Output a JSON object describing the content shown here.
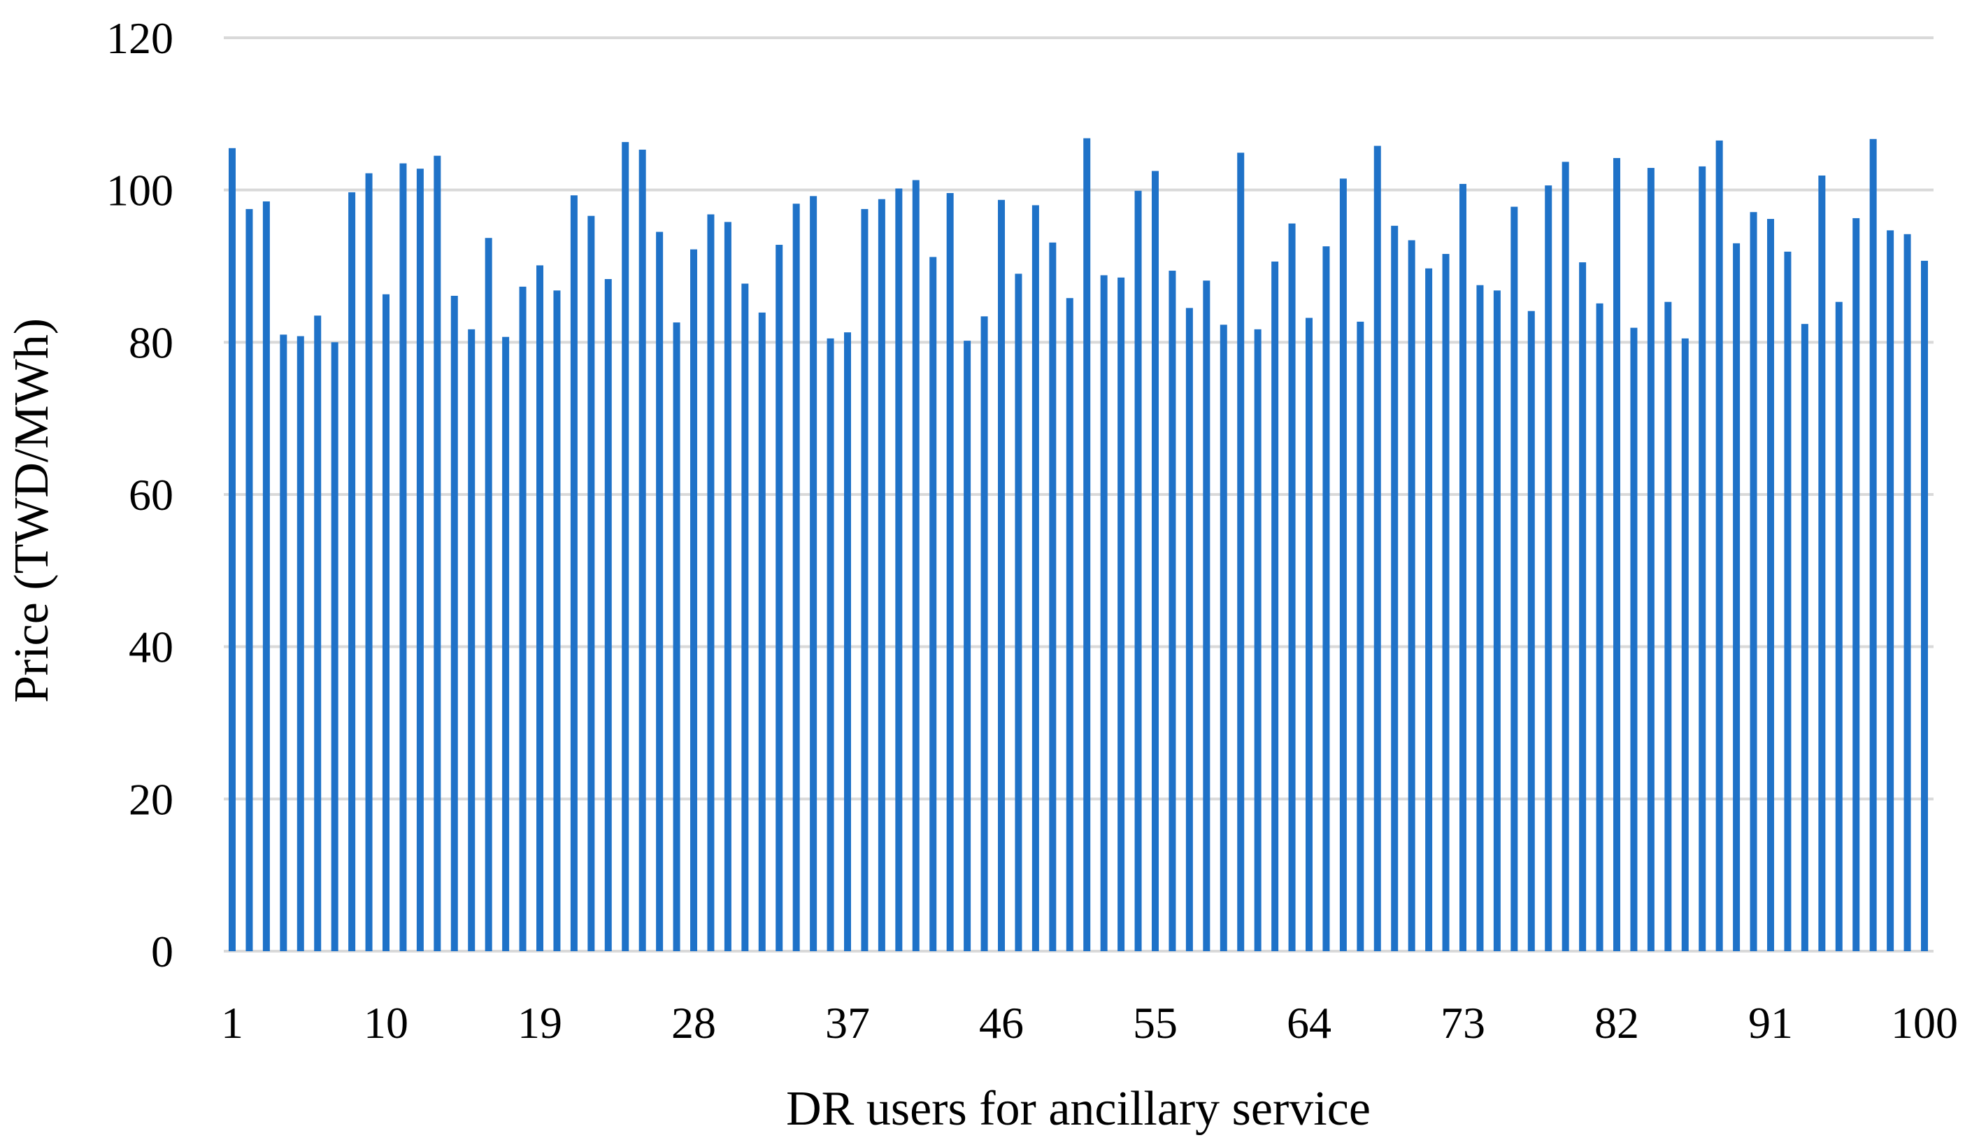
{
  "chart_data": {
    "type": "bar",
    "title": "",
    "xlabel": "DR users for ancillary service",
    "ylabel": "Price (TWD/MWh)",
    "ylim": [
      0,
      120
    ],
    "yticks": [
      0,
      20,
      40,
      60,
      80,
      100,
      120
    ],
    "xtick_labels": [
      "1",
      "10",
      "19",
      "28",
      "37",
      "46",
      "55",
      "64",
      "73",
      "82",
      "91",
      "100"
    ],
    "grid": "horizontal",
    "legend": "none",
    "bar_color": "#1f72c8",
    "grid_color": "#d9d9d9",
    "categories": [
      1,
      2,
      3,
      4,
      5,
      6,
      7,
      8,
      9,
      10,
      11,
      12,
      13,
      14,
      15,
      16,
      17,
      18,
      19,
      20,
      21,
      22,
      23,
      24,
      25,
      26,
      27,
      28,
      29,
      30,
      31,
      32,
      33,
      34,
      35,
      36,
      37,
      38,
      39,
      40,
      41,
      42,
      43,
      44,
      45,
      46,
      47,
      48,
      49,
      50,
      51,
      52,
      53,
      54,
      55,
      56,
      57,
      58,
      59,
      60,
      61,
      62,
      63,
      64,
      65,
      66,
      67,
      68,
      69,
      70,
      71,
      72,
      73,
      74,
      75,
      76,
      77,
      78,
      79,
      80,
      81,
      82,
      83,
      84,
      85,
      86,
      87,
      88,
      89,
      90,
      91,
      92,
      93,
      94,
      95,
      96,
      97,
      98,
      99,
      100
    ],
    "values": [
      105.5,
      97.5,
      98.5,
      81,
      80.8,
      83.5,
      80,
      99.7,
      102.2,
      86.3,
      103.5,
      102.8,
      104.5,
      86.1,
      81.7,
      93.7,
      80.7,
      87.3,
      90.1,
      86.8,
      99.3,
      96.6,
      88.3,
      106.3,
      105.3,
      94.5,
      82.6,
      92.2,
      96.8,
      95.8,
      87.7,
      83.9,
      92.8,
      98.2,
      99.2,
      80.5,
      81.3,
      97.5,
      98.8,
      100.2,
      101.3,
      91.2,
      99.6,
      80.2,
      83.4,
      98.7,
      89,
      98,
      93.1,
      85.8,
      106.8,
      88.8,
      88.5,
      99.9,
      102.5,
      89.4,
      84.5,
      88.1,
      82.3,
      104.9,
      81.7,
      90.6,
      95.6,
      83.2,
      92.6,
      101.5,
      82.7,
      105.8,
      95.3,
      93.4,
      89.7,
      91.6,
      100.8,
      87.5,
      86.8,
      97.8,
      84.1,
      100.6,
      103.7,
      90.5,
      85.1,
      104.2,
      81.9,
      102.9,
      85.3,
      80.5,
      103.1,
      106.5,
      93,
      97.1,
      96.2,
      91.9,
      82.4,
      101.9,
      85.3,
      96.3,
      106.7,
      94.7,
      94.2,
      90.7
    ]
  }
}
